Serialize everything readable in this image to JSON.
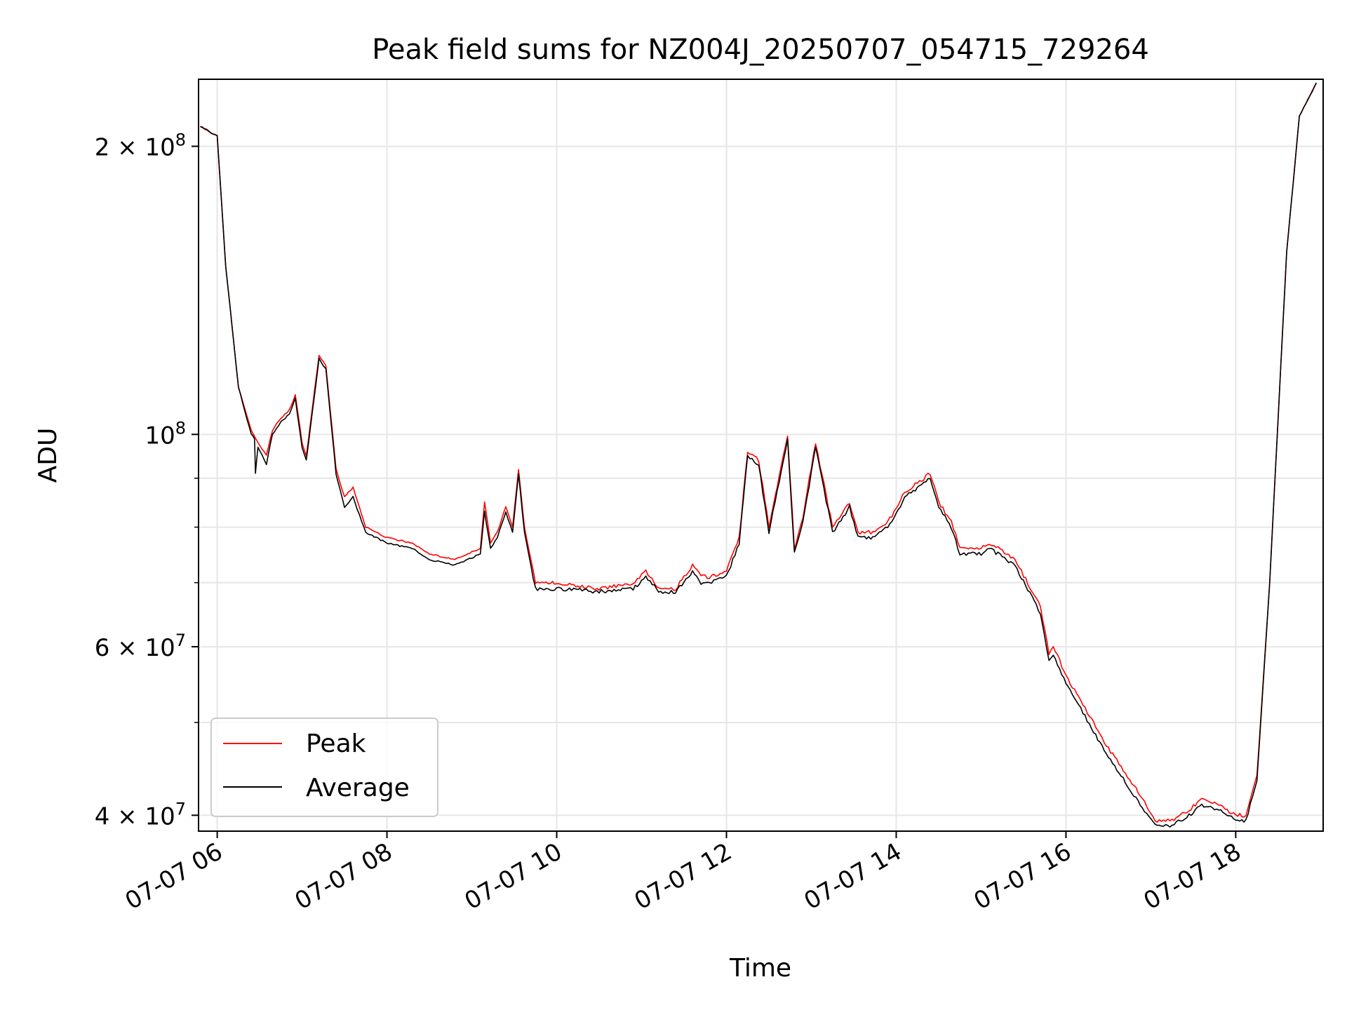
{
  "chart_data": {
    "type": "line",
    "title": "Peak field sums for NZ004J_20250707_054715_729264",
    "xlabel": "Time",
    "ylabel": "ADU",
    "yscale": "log",
    "grid": true,
    "legend_position": "lower-left",
    "xlim": [
      "2025-07-07 05:47",
      "2025-07-07 19:02"
    ],
    "ylim": [
      38500000,
      235000000
    ],
    "x_ticks": [
      "07-07 06",
      "07-07 08",
      "07-07 10",
      "07-07 12",
      "07-07 14",
      "07-07 16",
      "07-07 18"
    ],
    "y_ticks_major": [
      {
        "value": 40000000,
        "label_base": "4 × 10",
        "label_exp": "7"
      },
      {
        "value": 60000000,
        "label_base": "6 × 10",
        "label_exp": "7"
      },
      {
        "value": 100000000,
        "label_base": "10",
        "label_exp": "8"
      },
      {
        "value": 200000000,
        "label_base": "2 × 10",
        "label_exp": "8"
      }
    ],
    "y_ticks_minor": [
      50000000,
      70000000,
      80000000,
      90000000
    ],
    "x_tick_hours": [
      6,
      8,
      10,
      12,
      14,
      16,
      18
    ],
    "series": [
      {
        "name": "Peak",
        "color": "#ff0000",
        "x_hours": [
          5.8,
          5.95,
          6.0,
          6.1,
          6.25,
          6.4,
          6.48,
          6.58,
          6.65,
          6.75,
          6.85,
          6.92,
          7.0,
          7.05,
          7.2,
          7.28,
          7.4,
          7.5,
          7.6,
          7.75,
          8.0,
          8.3,
          8.5,
          8.8,
          9.1,
          9.15,
          9.22,
          9.3,
          9.4,
          9.48,
          9.55,
          9.62,
          9.75,
          10.0,
          10.5,
          10.9,
          11.05,
          11.2,
          11.4,
          11.55,
          11.6,
          11.7,
          11.8,
          12.0,
          12.15,
          12.25,
          12.38,
          12.5,
          12.72,
          12.8,
          12.9,
          13.05,
          13.25,
          13.45,
          13.55,
          13.75,
          13.95,
          14.1,
          14.25,
          14.4,
          14.5,
          14.65,
          14.75,
          15.0,
          15.1,
          15.4,
          15.7,
          15.8,
          15.85,
          16.0,
          16.5,
          16.8,
          17.05,
          17.25,
          17.45,
          17.6,
          17.8,
          18.0,
          18.12,
          18.25,
          18.4,
          18.6,
          18.75,
          18.95
        ],
        "values": [
          210000000,
          206000000,
          205000000,
          150000000,
          112000000,
          101000000,
          98000000,
          95000000,
          101000000,
          104000000,
          106000000,
          110000000,
          98000000,
          95000000,
          121000000,
          118000000,
          92000000,
          86000000,
          88000000,
          80000000,
          78000000,
          77000000,
          75000000,
          74000000,
          76000000,
          85000000,
          77000000,
          79000000,
          84000000,
          80000000,
          92000000,
          80000000,
          70000000,
          70000000,
          69000000,
          70000000,
          72000000,
          69000000,
          69000000,
          72000000,
          73000000,
          71000000,
          71000000,
          72000000,
          78000000,
          96000000,
          94000000,
          80000000,
          100000000,
          76000000,
          82000000,
          98000000,
          80000000,
          85000000,
          79000000,
          79000000,
          82000000,
          87000000,
          89000000,
          91000000,
          85000000,
          81000000,
          76000000,
          76000000,
          77000000,
          74000000,
          66000000,
          59000000,
          60000000,
          56000000,
          47000000,
          43000000,
          39500000,
          39500000,
          40500000,
          41500000,
          41000000,
          40000000,
          40000000,
          44000000,
          70000000,
          155000000,
          215000000,
          233000000
        ]
      },
      {
        "name": "Average",
        "color": "#000000",
        "x_hours": [
          5.8,
          5.95,
          6.0,
          6.1,
          6.25,
          6.4,
          6.44,
          6.45,
          6.48,
          6.58,
          6.65,
          6.75,
          6.85,
          6.92,
          7.0,
          7.05,
          7.2,
          7.28,
          7.4,
          7.5,
          7.6,
          7.75,
          8.0,
          8.3,
          8.5,
          8.8,
          9.1,
          9.15,
          9.22,
          9.3,
          9.4,
          9.48,
          9.55,
          9.62,
          9.75,
          10.0,
          10.5,
          10.9,
          11.05,
          11.2,
          11.4,
          11.55,
          11.6,
          11.7,
          11.8,
          12.0,
          12.15,
          12.25,
          12.38,
          12.5,
          12.72,
          12.8,
          12.9,
          13.05,
          13.25,
          13.45,
          13.55,
          13.75,
          13.95,
          14.1,
          14.25,
          14.4,
          14.5,
          14.65,
          14.75,
          15.0,
          15.1,
          15.4,
          15.7,
          15.8,
          15.85,
          16.0,
          16.5,
          16.8,
          17.05,
          17.25,
          17.45,
          17.6,
          17.8,
          18.0,
          18.12,
          18.25,
          18.4,
          18.6,
          18.75,
          18.95
        ],
        "values": [
          210000000,
          206000000,
          205000000,
          150000000,
          112000000,
          100000000,
          99000000,
          91000000,
          97000000,
          93000000,
          100000000,
          103000000,
          105000000,
          109000000,
          97000000,
          94000000,
          120000000,
          117000000,
          91000000,
          84000000,
          86000000,
          79000000,
          77000000,
          76000000,
          74000000,
          73000000,
          75000000,
          83000000,
          76000000,
          78000000,
          83000000,
          79000000,
          91000000,
          79000000,
          69000000,
          69000000,
          68500000,
          69000000,
          71000000,
          68500000,
          68500000,
          71000000,
          72000000,
          70000000,
          70000000,
          71000000,
          77000000,
          95000000,
          93000000,
          79000000,
          99000000,
          75000000,
          81000000,
          97000000,
          79000000,
          84000000,
          78000000,
          78000000,
          81000000,
          86000000,
          88000000,
          90000000,
          84000000,
          80000000,
          75000000,
          75000000,
          76000000,
          73000000,
          65000000,
          58000000,
          59000000,
          55000000,
          46000000,
          42000000,
          39000000,
          39000000,
          40000000,
          41000000,
          40500000,
          39500000,
          39500000,
          43500000,
          70000000,
          155000000,
          215000000,
          233000000
        ]
      }
    ]
  }
}
